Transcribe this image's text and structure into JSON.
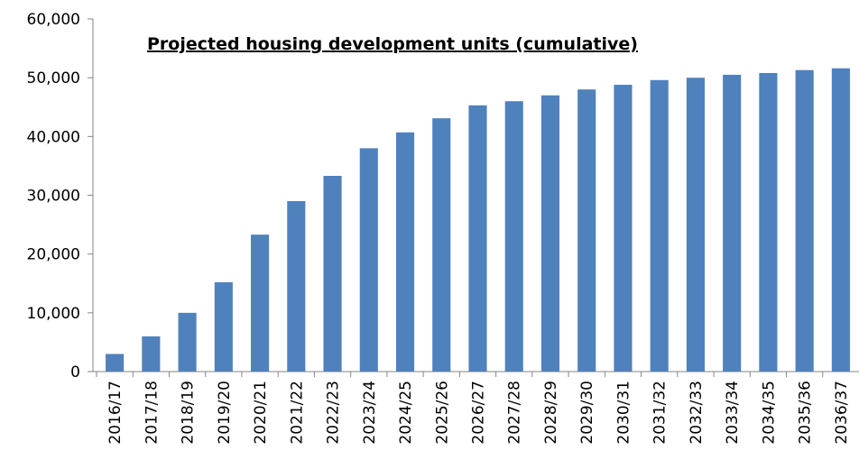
{
  "chart_data": {
    "type": "bar",
    "title": "Projected housing development units (cumulative)",
    "categories": [
      "2016/17",
      "2017/18",
      "2018/19",
      "2019/20",
      "2020/21",
      "2021/22",
      "2022/23",
      "2023/24",
      "2024/25",
      "2025/26",
      "2026/27",
      "2027/28",
      "2028/29",
      "2029/30",
      "2030/31",
      "2031/32",
      "2032/33",
      "2033/34",
      "2034/35",
      "2035/36",
      "2036/37"
    ],
    "values": [
      3000,
      6000,
      10000,
      15200,
      23300,
      29000,
      33300,
      38000,
      40700,
      43100,
      45300,
      46000,
      47000,
      48000,
      48800,
      49600,
      50000,
      50500,
      50800,
      51300,
      51600
    ],
    "color": "#4f81bd",
    "ylim": [
      0,
      60000
    ],
    "yticks": [
      0,
      {
        "value": 10000,
        "label": "10,000"
      },
      {
        "value": 20000,
        "label": "20,000"
      },
      {
        "value": 30000,
        "label": "30,000"
      },
      {
        "value": 40000,
        "label": "40,000"
      },
      {
        "value": 50000,
        "label": "50,000"
      },
      {
        "value": 60000,
        "label": "60,000"
      }
    ],
    "grid": false
  }
}
